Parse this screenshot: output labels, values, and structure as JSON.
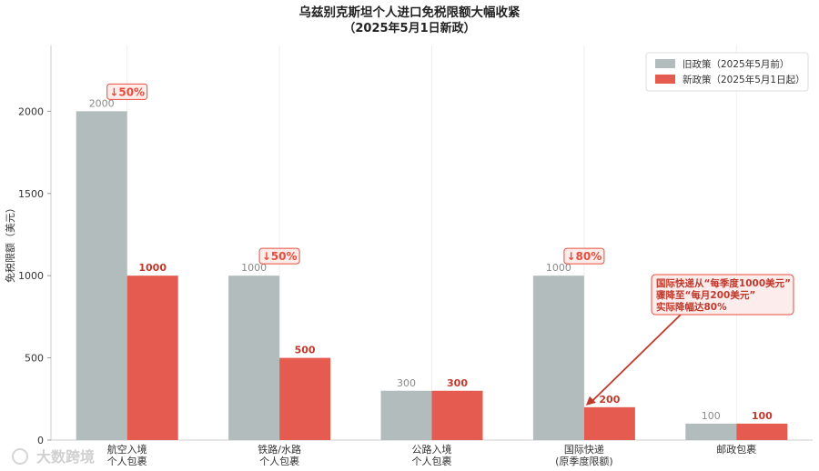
{
  "chart_data": {
    "type": "bar",
    "title": [
      "乌兹别克斯坦个人进口免税限额大幅收紧",
      "（2025年5月1日新政）"
    ],
    "ylabel": "免税限额（美元）",
    "xlabel": "",
    "ylim": [
      0,
      2400
    ],
    "yticks": [
      0,
      500,
      1000,
      1500,
      2000
    ],
    "grid": "x",
    "legend_position": "top-right",
    "categories": [
      [
        "航空入境",
        "个人包裹"
      ],
      [
        "铁路/水路",
        "个人包裹"
      ],
      [
        "公路入境",
        "个人包裹"
      ],
      [
        "国际快递",
        "(原季度限额)"
      ],
      [
        "邮政包裹"
      ]
    ],
    "series": [
      {
        "name": "旧政策（2025年5月前）",
        "color": "#b3bcbc",
        "values": [
          2000,
          1000,
          300,
          1000,
          100
        ]
      },
      {
        "name": "新政策（2025年5月1日起）",
        "color": "#e55b4f",
        "values": [
          1000,
          500,
          300,
          200,
          100
        ]
      }
    ],
    "drop_labels": [
      "↓50%",
      "↓50%",
      "",
      "↓80%",
      ""
    ],
    "annotation": {
      "category_index": 3,
      "lines": [
        "国际快递从“每季度1000美元”",
        "骤降至“每月200美元”",
        "实际降幅达80%"
      ]
    }
  },
  "watermark": {
    "text": "大数跨境"
  },
  "colors": {
    "old": "#b3bcbc",
    "new": "#e55b4f",
    "accent": "#e74c3c",
    "label_red": "#c0392b",
    "drop_badge_fill": "#fdecea",
    "note_fill": "#fdecec"
  }
}
